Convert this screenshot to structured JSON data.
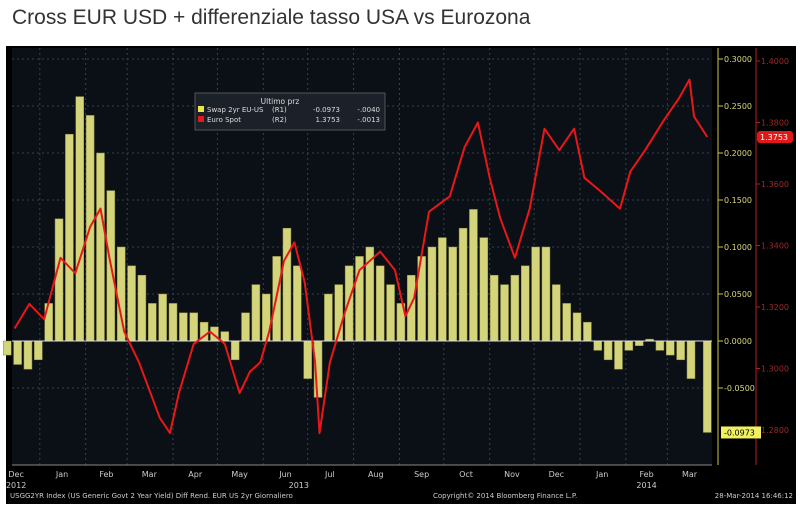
{
  "chart_data": {
    "type": "bar+line",
    "title": "Cross EUR USD + differenziale tasso USA vs Eurozona",
    "legend": {
      "header": "Ultimo prz",
      "placement": "top-left",
      "entries": [
        {
          "name": "Swap 2yr EU-US",
          "axis": "(R1)",
          "last": "-0.0973",
          "change": "-.0040",
          "color": "#e8e84a"
        },
        {
          "name": "Euro Spot",
          "axis": "(R2)",
          "last": "1.3753",
          "change": "-.0013",
          "color": "#e81818"
        }
      ]
    },
    "x_months": [
      "Dec",
      "Jan",
      "Feb",
      "Mar",
      "Apr",
      "May",
      "Jun",
      "Jul",
      "Aug",
      "Sep",
      "Oct",
      "Nov",
      "Dec",
      "Jan",
      "Feb",
      "Mar"
    ],
    "x_years": [
      "2012",
      "2013",
      "2014"
    ],
    "r1_axis": {
      "ticks": [
        "0.3000",
        "0.2500",
        "0.2000",
        "0.1500",
        "0.1000",
        "0.0500",
        "0.0000",
        "-0.0500"
      ],
      "range": [
        -0.13,
        0.31
      ],
      "last_label": "-0.0973"
    },
    "r2_axis": {
      "ticks": [
        "1.4000",
        "1.3800",
        "1.3600",
        "1.3400",
        "1.3200",
        "1.3000",
        "1.2800"
      ],
      "range": [
        1.27,
        1.405
      ],
      "last_label": "1.3753"
    },
    "series": [
      {
        "name": "Swap 2yr EU-US",
        "kind": "bar",
        "axis": "R1",
        "x": [
          "2012-12-10",
          "2012-12-17",
          "2012-12-24",
          "2012-12-31",
          "2013-01-07",
          "2013-01-14",
          "2013-01-21",
          "2013-01-28",
          "2013-02-04",
          "2013-02-11",
          "2013-02-18",
          "2013-02-25",
          "2013-03-04",
          "2013-03-11",
          "2013-03-18",
          "2013-03-25",
          "2013-04-01",
          "2013-04-08",
          "2013-04-15",
          "2013-04-22",
          "2013-04-29",
          "2013-05-06",
          "2013-05-13",
          "2013-05-20",
          "2013-05-27",
          "2013-06-03",
          "2013-06-10",
          "2013-06-17",
          "2013-06-24",
          "2013-07-01",
          "2013-07-08",
          "2013-07-15",
          "2013-07-22",
          "2013-07-29",
          "2013-08-05",
          "2013-08-12",
          "2013-08-19",
          "2013-08-26",
          "2013-09-02",
          "2013-09-09",
          "2013-09-16",
          "2013-09-23",
          "2013-09-30",
          "2013-10-07",
          "2013-10-14",
          "2013-10-21",
          "2013-10-28",
          "2013-11-04",
          "2013-11-11",
          "2013-11-18",
          "2013-11-25",
          "2013-12-02",
          "2013-12-09",
          "2013-12-16",
          "2013-12-23",
          "2013-12-30",
          "2014-01-06",
          "2014-01-13",
          "2014-01-20",
          "2014-01-27",
          "2014-02-03",
          "2014-02-10",
          "2014-02-17",
          "2014-02-24",
          "2014-03-03",
          "2014-03-10",
          "2014-03-17",
          "2014-03-28"
        ],
        "values": [
          -0.015,
          -0.025,
          -0.03,
          -0.02,
          0.04,
          0.13,
          0.22,
          0.26,
          0.24,
          0.2,
          0.16,
          0.1,
          0.08,
          0.07,
          0.04,
          0.05,
          0.04,
          0.03,
          0.03,
          0.02,
          0.015,
          0.01,
          -0.02,
          0.03,
          0.06,
          0.05,
          0.09,
          0.12,
          0.08,
          -0.04,
          -0.06,
          0.05,
          0.06,
          0.08,
          0.09,
          0.1,
          0.08,
          0.06,
          0.04,
          0.07,
          0.09,
          0.1,
          0.11,
          0.1,
          0.12,
          0.14,
          0.11,
          0.07,
          0.06,
          0.07,
          0.08,
          0.1,
          0.1,
          0.06,
          0.04,
          0.03,
          0.02,
          -0.01,
          -0.02,
          -0.03,
          -0.01,
          -0.005,
          0.002,
          -0.01,
          -0.015,
          -0.02,
          -0.04,
          -0.0973
        ]
      },
      {
        "name": "Euro Spot",
        "kind": "line",
        "axis": "R2",
        "x": [
          "2012-12-15",
          "2012-12-25",
          "2013-01-04",
          "2013-01-15",
          "2013-01-25",
          "2013-02-04",
          "2013-02-11",
          "2013-02-17",
          "2013-02-27",
          "2013-03-09",
          "2013-03-23",
          "2013-03-30",
          "2013-04-05",
          "2013-04-15",
          "2013-04-26",
          "2013-05-06",
          "2013-05-16",
          "2013-05-23",
          "2013-05-30",
          "2013-06-05",
          "2013-06-15",
          "2013-06-22",
          "2013-06-29",
          "2013-07-06",
          "2013-07-09",
          "2013-07-16",
          "2013-07-26",
          "2013-08-05",
          "2013-08-19",
          "2013-08-29",
          "2013-09-05",
          "2013-09-11",
          "2013-09-21",
          "2013-10-05",
          "2013-10-15",
          "2013-10-24",
          "2013-11-01",
          "2013-11-08",
          "2013-11-18",
          "2013-11-28",
          "2013-12-08",
          "2013-12-18",
          "2013-12-28",
          "2014-01-04",
          "2014-01-14",
          "2014-01-28",
          "2014-02-04",
          "2014-02-14",
          "2014-02-27",
          "2014-03-09",
          "2014-03-16",
          "2014-03-19",
          "2014-03-28"
        ],
        "values": [
          1.313,
          1.321,
          1.316,
          1.336,
          1.331,
          1.346,
          1.352,
          1.336,
          1.312,
          1.302,
          1.284,
          1.279,
          1.292,
          1.308,
          1.312,
          1.308,
          1.292,
          1.299,
          1.302,
          1.312,
          1.335,
          1.341,
          1.328,
          1.302,
          1.279,
          1.302,
          1.318,
          1.332,
          1.338,
          1.332,
          1.317,
          1.323,
          1.351,
          1.356,
          1.372,
          1.38,
          1.362,
          1.349,
          1.336,
          1.352,
          1.378,
          1.371,
          1.378,
          1.362,
          1.358,
          1.352,
          1.364,
          1.371,
          1.381,
          1.388,
          1.394,
          1.382,
          1.3753
        ]
      }
    ],
    "grid": true
  },
  "footer": {
    "left": "USGG2YR Index (US Generic Govt 2 Year Yield) Diff Rend. EUR US 2yr  Giornaliero",
    "center": "Copyright© 2014 Bloomberg Finance L.P.",
    "right": "28-Mar-2014 16:46:12"
  }
}
